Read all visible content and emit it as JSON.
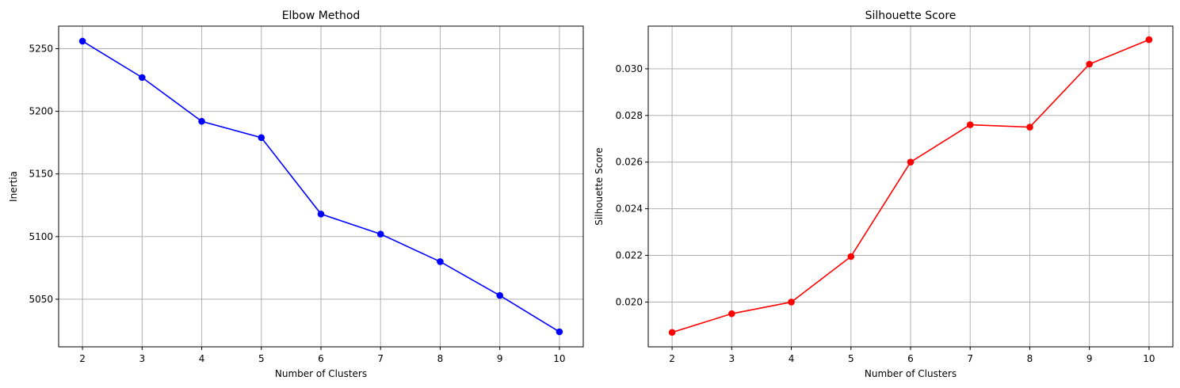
{
  "chart_data": [
    {
      "type": "line",
      "title": "Elbow Method",
      "xlabel": "Number of Clusters",
      "ylabel": "Inertia",
      "x": [
        2,
        3,
        4,
        5,
        6,
        7,
        8,
        9,
        10
      ],
      "series": [
        {
          "values": [
            5256,
            5227,
            5192,
            5179,
            5118,
            5102,
            5080,
            5053,
            5024
          ],
          "color": "#0000ff",
          "marker": "circle"
        }
      ],
      "xlim": [
        1.6,
        10.4
      ],
      "ylim": [
        5012,
        5268
      ],
      "xticks": [
        2,
        3,
        4,
        5,
        6,
        7,
        8,
        9,
        10
      ],
      "yticks": [
        5050,
        5100,
        5150,
        5200,
        5250
      ],
      "ytick_labels": [
        "5050",
        "5100",
        "5150",
        "5200",
        "5250"
      ],
      "grid": true
    },
    {
      "type": "line",
      "title": "Silhouette Score",
      "xlabel": "Number of Clusters",
      "ylabel": "Silhouette Score",
      "x": [
        2,
        3,
        4,
        5,
        6,
        7,
        8,
        9,
        10
      ],
      "series": [
        {
          "values": [
            0.0187,
            0.0195,
            0.02,
            0.02195,
            0.026,
            0.0276,
            0.0275,
            0.0302,
            0.03125
          ],
          "color": "#ff0000",
          "marker": "circle"
        }
      ],
      "xlim": [
        1.6,
        10.4
      ],
      "ylim": [
        0.01808,
        0.03183
      ],
      "xticks": [
        2,
        3,
        4,
        5,
        6,
        7,
        8,
        9,
        10
      ],
      "yticks": [
        0.02,
        0.022,
        0.024,
        0.026,
        0.028,
        0.03
      ],
      "ytick_labels": [
        "0.020",
        "0.022",
        "0.024",
        "0.026",
        "0.028",
        "0.030"
      ],
      "grid": true
    }
  ]
}
